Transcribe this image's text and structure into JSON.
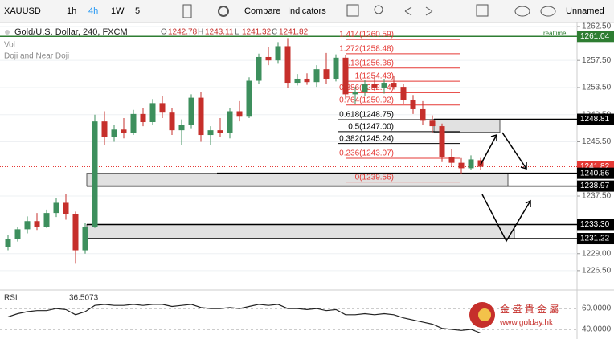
{
  "toolbar": {
    "symbol": "XAUUSD",
    "intervals": [
      "1h",
      "4h",
      "1W",
      "5"
    ],
    "compare": "Compare",
    "indicators": "Indicators",
    "layout": "Unnamed"
  },
  "chart_data": {
    "type": "candlestick",
    "title": "Gold/U.S. Dollar, 240, FXCM",
    "legend_keys": [
      "O",
      "H",
      "L",
      "C"
    ],
    "indicators": [
      "Vol",
      "Doji and Near Doji"
    ],
    "status": "realtime",
    "up_color": "#3d8f5d",
    "down_color": "#c62f2b",
    "grid": true,
    "ylim": [
      1223.76,
      1263.09
    ],
    "yticks": [
      {
        "value": 1262.5,
        "label": "1262.50"
      },
      {
        "value": 1257.5,
        "label": "1257.50"
      },
      {
        "value": 1253.5,
        "label": "1253.50"
      },
      {
        "value": 1249.5,
        "label": "1249.50"
      },
      {
        "value": 1245.5,
        "label": "1245.50"
      },
      {
        "value": 1237.5,
        "label": "1237.50"
      },
      {
        "value": 1229,
        "label": "1229.00"
      },
      {
        "value": 1226.5,
        "label": "1226.50"
      }
    ],
    "open": [
      1230.0,
      1231.2,
      1232.6,
      1233.8,
      1233.0,
      1235.0,
      1236.5,
      1234.8,
      1229.5,
      1233.0,
      1248.5,
      1246.2,
      1247.3,
      1246.8,
      1249.6,
      1248.4,
      1251.2,
      1249.8,
      1247.2,
      1248.0,
      1252.0,
      1246.5,
      1247.2,
      1246.8,
      1250.0,
      1249.2,
      1254.5,
      1258.0,
      1257.5,
      1259.6,
      1254.2,
      1254.8,
      1254.3,
      1256.2,
      1254.8,
      1257.9,
      1252.5,
      1252.8,
      1254.0,
      1253.5,
      1254.2,
      1253.6,
      1251.6,
      1250.3,
      1248.6,
      1247.8,
      1243.2,
      1242.4,
      1241.6,
      1242.78
    ],
    "high": [
      1231.8,
      1233.0,
      1234.5,
      1235.0,
      1235.5,
      1237.2,
      1237.8,
      1235.2,
      1233.5,
      1249.5,
      1250.0,
      1248.0,
      1249.0,
      1250.2,
      1250.5,
      1251.8,
      1252.3,
      1250.5,
      1248.8,
      1252.5,
      1252.8,
      1247.8,
      1249.0,
      1250.5,
      1251.5,
      1255.0,
      1258.5,
      1259.5,
      1260.2,
      1260.8,
      1255.5,
      1255.6,
      1256.8,
      1258.6,
      1258.4,
      1258.3,
      1253.6,
      1254.6,
      1255.3,
      1254.8,
      1255.2,
      1254.0,
      1252.4,
      1251.5,
      1249.4,
      1248.2,
      1244.4,
      1243.1,
      1243.5,
      1243.11
    ],
    "low": [
      1229.5,
      1230.8,
      1232.0,
      1232.5,
      1232.8,
      1234.4,
      1234.0,
      1227.5,
      1229.0,
      1232.8,
      1245.0,
      1245.5,
      1246.0,
      1246.5,
      1247.8,
      1248.0,
      1249.0,
      1246.5,
      1245.0,
      1247.5,
      1245.5,
      1245.0,
      1246.2,
      1246.0,
      1248.5,
      1249.0,
      1254.0,
      1256.8,
      1257.0,
      1253.5,
      1253.8,
      1253.9,
      1253.6,
      1254.0,
      1254.4,
      1251.8,
      1251.0,
      1252.2,
      1253.0,
      1252.6,
      1253.2,
      1251.0,
      1249.6,
      1248.0,
      1246.8,
      1242.5,
      1241.8,
      1240.8,
      1241.3,
      1241.32
    ],
    "close": [
      1231.2,
      1232.6,
      1233.8,
      1233.0,
      1235.0,
      1236.5,
      1234.8,
      1229.5,
      1233.0,
      1248.5,
      1246.2,
      1247.3,
      1246.8,
      1249.6,
      1248.4,
      1251.2,
      1249.8,
      1247.2,
      1248.0,
      1252.0,
      1246.5,
      1247.2,
      1246.8,
      1250.0,
      1249.2,
      1254.5,
      1258.0,
      1257.5,
      1259.6,
      1254.2,
      1254.8,
      1254.3,
      1256.2,
      1254.8,
      1257.9,
      1252.5,
      1252.8,
      1254.0,
      1253.5,
      1254.2,
      1253.6,
      1251.6,
      1250.3,
      1248.6,
      1247.8,
      1243.2,
      1242.4,
      1241.6,
      1242.9,
      1241.82
    ],
    "fib_levels": [
      {
        "value": 1260.59,
        "label": "1.414(1260.59)",
        "color": "#e53935"
      },
      {
        "value": 1258.48,
        "label": "1.272(1258.48)",
        "color": "#e53935"
      },
      {
        "value": 1256.36,
        "label": "1.13(1256.36)",
        "color": "#e53935"
      },
      {
        "value": 1254.43,
        "label": "1(1254.43)",
        "color": "#e53935"
      },
      {
        "value": 1252.74,
        "label": "0.886(1252.74)",
        "color": "#e53935"
      },
      {
        "value": 1250.92,
        "label": "0.764(1250.92)",
        "color": "#e53935"
      },
      {
        "value": 1248.75,
        "label": "0.618(1248.75)",
        "color": "#000000"
      },
      {
        "value": 1247.0,
        "label": "0.5(1247.00)",
        "color": "#000000"
      },
      {
        "value": 1245.24,
        "label": "0.382(1245.24)",
        "color": "#000000"
      },
      {
        "value": 1243.07,
        "label": "0.236(1243.07)",
        "color": "#e53935"
      },
      {
        "value": 1239.56,
        "label": "0(1239.56)",
        "color": "#e53935"
      }
    ],
    "price_levels": [
      {
        "value": 1261.04,
        "color": "#2e7d32"
      },
      {
        "value": 1248.81,
        "color": "#000000"
      },
      {
        "value": 1241.82,
        "color": "#e53935"
      },
      {
        "value": 1240.86,
        "color": "#000000"
      },
      {
        "value": 1238.97,
        "color": "#000000"
      },
      {
        "value": 1233.3,
        "label": "1233.30",
        "color": "#000000"
      },
      {
        "value": 1231.22,
        "color": "#000000"
      }
    ],
    "zones": [
      {
        "high": 1248.81,
        "low": 1246.9
      },
      {
        "high": 1240.86,
        "low": 1238.97
      },
      {
        "high": 1233.3,
        "low": 1231.22
      }
    ],
    "rsi": {
      "name": "RSI",
      "color": "#222222",
      "ylim": [
        32.3,
        77
      ],
      "yticks": [
        {
          "value": 60,
          "label": "60.0000"
        },
        {
          "value": 40,
          "label": "40.0000"
        }
      ],
      "values": [
        52,
        55,
        57,
        58,
        58,
        60,
        59,
        54,
        57,
        63,
        64,
        63,
        63,
        64,
        63,
        64,
        64,
        62,
        63,
        64,
        61,
        60,
        60,
        61,
        60,
        62,
        64,
        63,
        64,
        60,
        60,
        59,
        60,
        58,
        59,
        54,
        54,
        55,
        54,
        55,
        54,
        51,
        49,
        47,
        45,
        41,
        40,
        39,
        40,
        36.5073
      ]
    }
  },
  "logo": {
    "name": "金 盛 貴 金 屬",
    "url": "www.golday.hk"
  }
}
